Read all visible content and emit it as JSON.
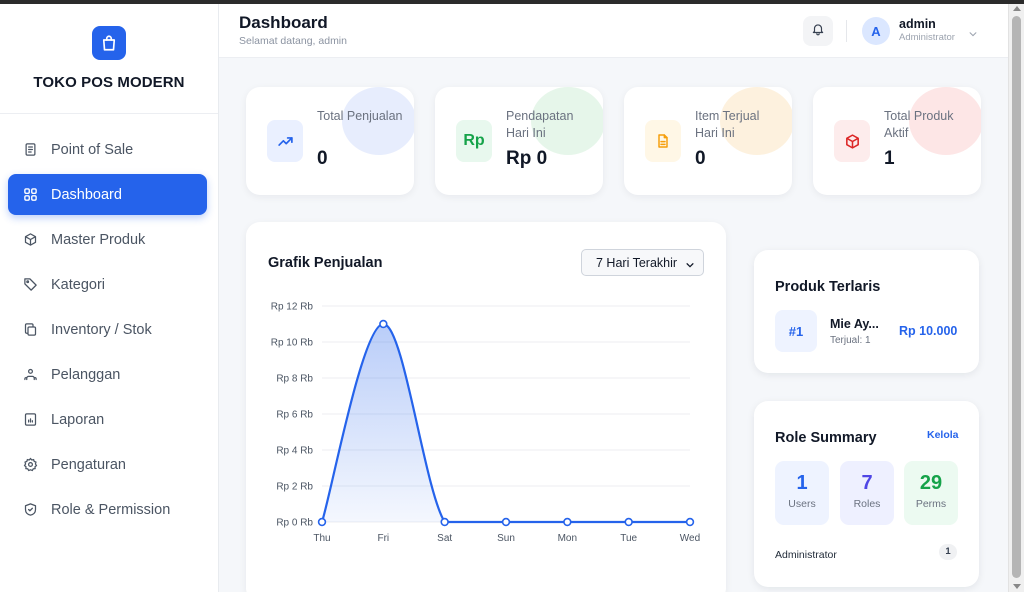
{
  "brand": {
    "name": "TOKO POS MODERN",
    "logo_icon": "shopping-bag-icon",
    "accent": "#2563eb"
  },
  "sidebar": {
    "items": [
      {
        "label": "Point of Sale",
        "icon": "receipt-icon",
        "active": false
      },
      {
        "label": "Dashboard",
        "icon": "grid-icon",
        "active": true
      },
      {
        "label": "Master Produk",
        "icon": "box-icon",
        "active": false
      },
      {
        "label": "Kategori",
        "icon": "tag-icon",
        "active": false
      },
      {
        "label": "Inventory / Stok",
        "icon": "copy-icon",
        "active": false
      },
      {
        "label": "Pelanggan",
        "icon": "users-icon",
        "active": false
      },
      {
        "label": "Laporan",
        "icon": "report-icon",
        "active": false
      },
      {
        "label": "Pengaturan",
        "icon": "gear-icon",
        "active": false
      },
      {
        "label": "Role & Permission",
        "icon": "shield-icon",
        "active": false
      }
    ]
  },
  "header": {
    "title": "Dashboard",
    "subtitle": "Selamat datang, admin",
    "user": {
      "initial": "A",
      "name": "admin",
      "role": "Administrator"
    }
  },
  "stats": [
    {
      "label": "Total Penjualan",
      "value": "0",
      "icon": "trending-up-icon",
      "color": "#2563eb"
    },
    {
      "label": "Pendapatan Hari Ini",
      "value": "Rp 0",
      "icon": "rp-icon",
      "icon_text": "Rp",
      "color": "#16a34a"
    },
    {
      "label": "Item Terjual Hari Ini",
      "value": "0",
      "icon": "document-icon",
      "color": "#f59e0b"
    },
    {
      "label": "Total Produk Aktif",
      "value": "1",
      "icon": "cube-icon",
      "color": "#dc2626"
    }
  ],
  "sales_chart": {
    "title": "Grafik Penjualan",
    "period": "7 Hari Terakhir"
  },
  "chart_data": {
    "type": "line",
    "title": "Grafik Penjualan",
    "categories": [
      "Thu",
      "Fri",
      "Sat",
      "Sun",
      "Mon",
      "Tue",
      "Wed"
    ],
    "values": [
      0,
      11000,
      0,
      0,
      0,
      0,
      0
    ],
    "ylim": [
      0,
      12000
    ],
    "yticks": [
      0,
      2000,
      4000,
      6000,
      8000,
      10000,
      12000
    ],
    "ytick_labels": [
      "Rp 0 Rb",
      "Rp 2 Rb",
      "Rp 4 Rb",
      "Rp 6 Rb",
      "Rp 8 Rb",
      "Rp 10 Rb",
      "Rp 12 Rb"
    ],
    "grid": true,
    "color": "#2563eb"
  },
  "top_products": {
    "title": "Produk Terlaris",
    "items": [
      {
        "rank": "#1",
        "name": "Mie Ay...",
        "sold": "Terjual: 1",
        "price": "Rp 10.000"
      }
    ]
  },
  "role_summary": {
    "title": "Role Summary",
    "manage_label": "Kelola",
    "boxes": [
      {
        "value": "1",
        "label": "Users",
        "color": "#2563eb",
        "bg": "#eef3ff"
      },
      {
        "value": "7",
        "label": "Roles",
        "color": "#4f46e5",
        "bg": "#eef0ff"
      },
      {
        "value": "29",
        "label": "Perms",
        "color": "#16a34a",
        "bg": "#ecfaf1"
      }
    ],
    "rows": [
      {
        "name": "Administrator",
        "count": "1"
      }
    ]
  }
}
